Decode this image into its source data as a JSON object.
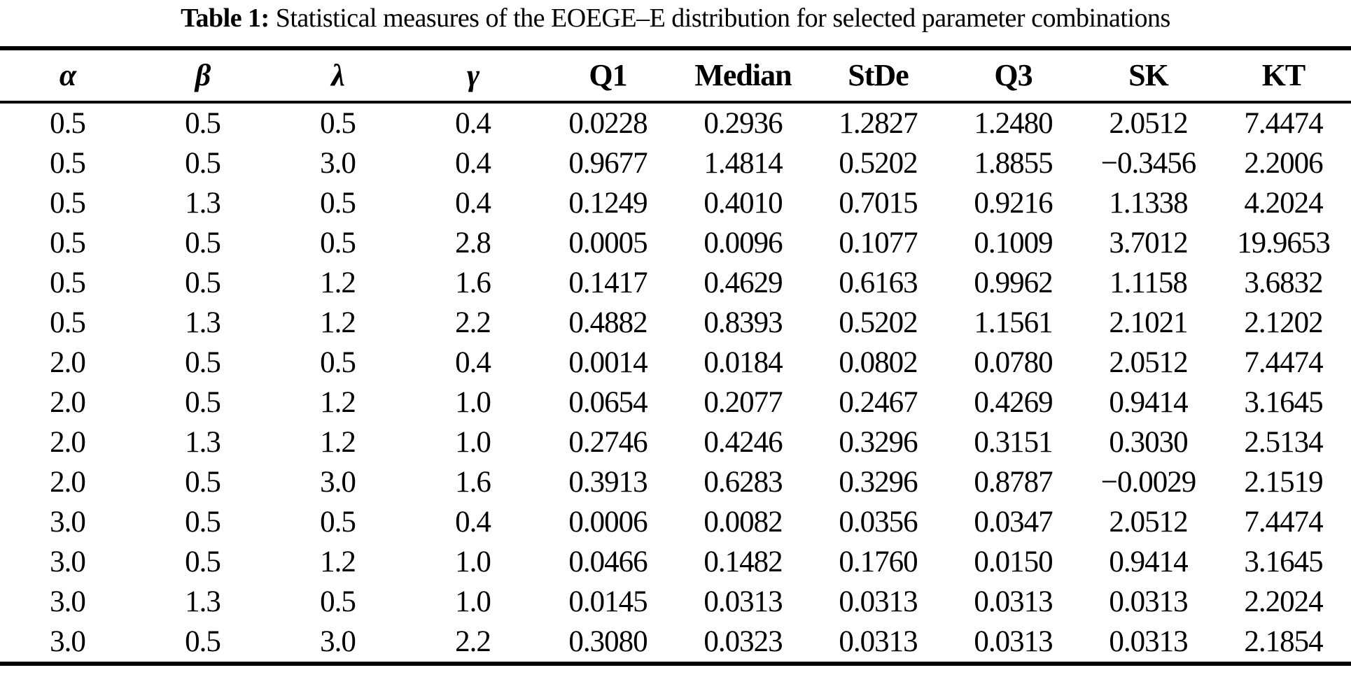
{
  "caption": {
    "label": "Table 1:",
    "text": " Statistical measures of the EOEGE–E distribution for selected parameter combinations"
  },
  "colors": {
    "background": "#ffffff",
    "text": "#000000",
    "rule": "#000000"
  },
  "chart_data": {
    "type": "table",
    "title": "Table 1: Statistical measures of the EOEGE–E distribution for selected parameter combinations",
    "columns": [
      {
        "name": "alpha",
        "label": "α",
        "greek": true
      },
      {
        "name": "beta",
        "label": "β",
        "greek": true
      },
      {
        "name": "lambda",
        "label": "λ",
        "greek": true
      },
      {
        "name": "gamma",
        "label": "γ",
        "greek": true
      },
      {
        "name": "q1",
        "label": "Q1",
        "greek": false
      },
      {
        "name": "median",
        "label": "Median",
        "greek": false
      },
      {
        "name": "stde",
        "label": "StDe",
        "greek": false
      },
      {
        "name": "q3",
        "label": "Q3",
        "greek": false
      },
      {
        "name": "sk",
        "label": "SK",
        "greek": false
      },
      {
        "name": "kt",
        "label": "KT",
        "greek": false
      }
    ],
    "rows": [
      [
        "0.5",
        "0.5",
        "0.5",
        "0.4",
        "0.0228",
        "0.2936",
        "1.2827",
        "1.2480",
        "2.0512",
        "7.4474"
      ],
      [
        "0.5",
        "0.5",
        "3.0",
        "0.4",
        "0.9677",
        "1.4814",
        "0.5202",
        "1.8855",
        "−0.3456",
        "2.2006"
      ],
      [
        "0.5",
        "1.3",
        "0.5",
        "0.4",
        "0.1249",
        "0.4010",
        "0.7015",
        "0.9216",
        "1.1338",
        "4.2024"
      ],
      [
        "0.5",
        "0.5",
        "0.5",
        "2.8",
        "0.0005",
        "0.0096",
        "0.1077",
        "0.1009",
        "3.7012",
        "19.9653"
      ],
      [
        "0.5",
        "0.5",
        "1.2",
        "1.6",
        "0.1417",
        "0.4629",
        "0.6163",
        "0.9962",
        "1.1158",
        "3.6832"
      ],
      [
        "0.5",
        "1.3",
        "1.2",
        "2.2",
        "0.4882",
        "0.8393",
        "0.5202",
        "1.1561",
        "2.1021",
        "2.1202"
      ],
      [
        "2.0",
        "0.5",
        "0.5",
        "0.4",
        "0.0014",
        "0.0184",
        "0.0802",
        "0.0780",
        "2.0512",
        "7.4474"
      ],
      [
        "2.0",
        "0.5",
        "1.2",
        "1.0",
        "0.0654",
        "0.2077",
        "0.2467",
        "0.4269",
        "0.9414",
        "3.1645"
      ],
      [
        "2.0",
        "1.3",
        "1.2",
        "1.0",
        "0.2746",
        "0.4246",
        "0.3296",
        "0.3151",
        "0.3030",
        "2.5134"
      ],
      [
        "2.0",
        "0.5",
        "3.0",
        "1.6",
        "0.3913",
        "0.6283",
        "0.3296",
        "0.8787",
        "−0.0029",
        "2.1519"
      ],
      [
        "3.0",
        "0.5",
        "0.5",
        "0.4",
        "0.0006",
        "0.0082",
        "0.0356",
        "0.0347",
        "2.0512",
        "7.4474"
      ],
      [
        "3.0",
        "0.5",
        "1.2",
        "1.0",
        "0.0466",
        "0.1482",
        "0.1760",
        "0.0150",
        "0.9414",
        "3.1645"
      ],
      [
        "3.0",
        "1.3",
        "0.5",
        "1.0",
        "0.0145",
        "0.0313",
        "0.0313",
        "0.0313",
        "0.0313",
        "2.2024"
      ],
      [
        "3.0",
        "0.5",
        "3.0",
        "2.2",
        "0.3080",
        "0.0323",
        "0.0313",
        "0.0313",
        "0.0313",
        "2.1854"
      ]
    ]
  }
}
